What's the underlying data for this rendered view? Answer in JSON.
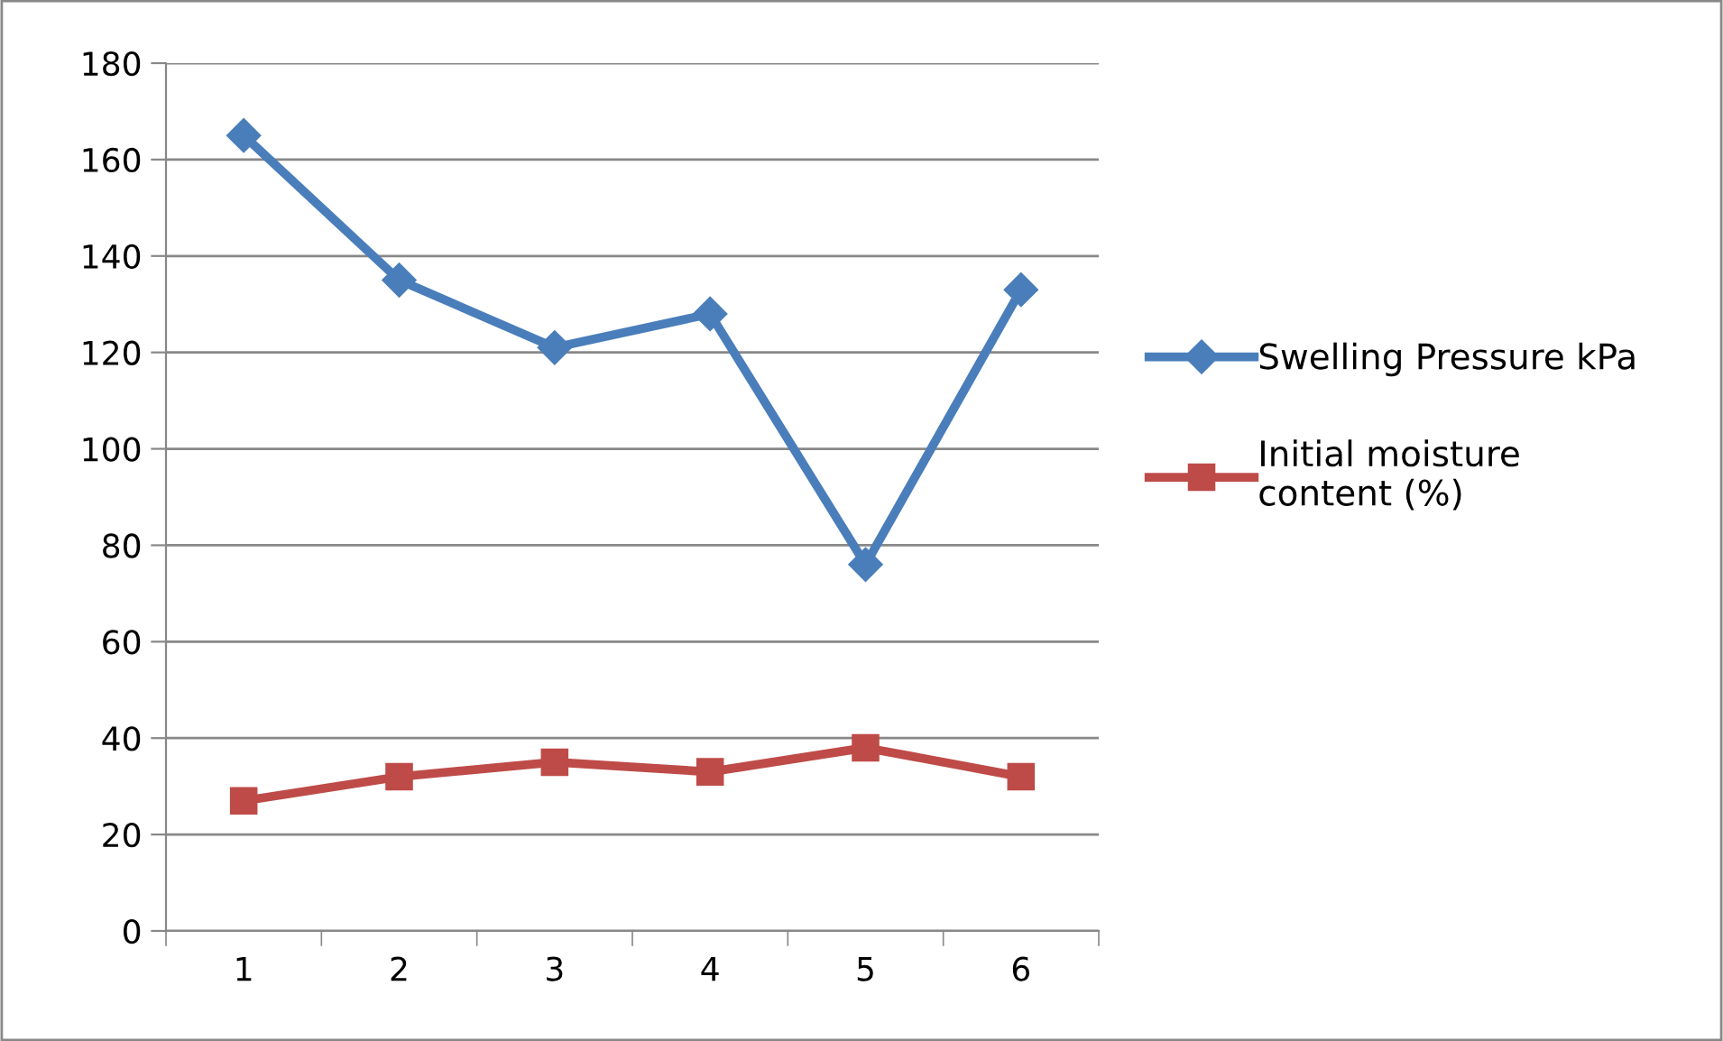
{
  "chart_data": {
    "type": "line",
    "categories": [
      "1",
      "2",
      "3",
      "4",
      "5",
      "6"
    ],
    "series": [
      {
        "name": "Swelling Pressure kPa",
        "color": "#4a7ebb",
        "marker": "diamond",
        "values": [
          165,
          135,
          121,
          128,
          76,
          133
        ]
      },
      {
        "name": "Initial moisture\ncontent (%)",
        "color": "#be4b48",
        "marker": "square",
        "values": [
          27,
          32,
          35,
          33,
          38,
          32
        ]
      }
    ],
    "ylim": [
      0,
      180
    ],
    "yticks": [
      0,
      20,
      40,
      60,
      80,
      100,
      120,
      140,
      160,
      180
    ],
    "grid": "y",
    "legend": "right",
    "line_style": "solid"
  }
}
